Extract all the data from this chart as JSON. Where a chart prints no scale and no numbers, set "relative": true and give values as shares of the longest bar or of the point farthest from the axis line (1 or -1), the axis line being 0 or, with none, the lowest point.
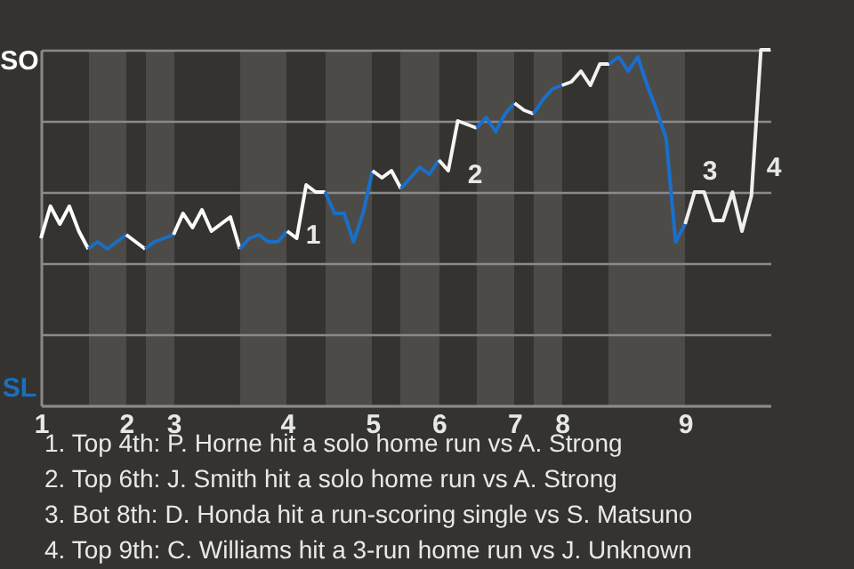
{
  "chart_data": {
    "type": "line",
    "relative": true,
    "grid": "y",
    "categories": [
      "1",
      null,
      null,
      null,
      null,
      null,
      null,
      null,
      null,
      "2",
      null,
      null,
      null,
      null,
      "3",
      null,
      null,
      null,
      null,
      null,
      null,
      null,
      null,
      null,
      null,
      null,
      "4",
      null,
      null,
      null,
      null,
      null,
      null,
      null,
      null,
      "5",
      null,
      null,
      null,
      null,
      null,
      null,
      "6",
      null,
      null,
      null,
      null,
      null,
      null,
      null,
      "7",
      null,
      null,
      null,
      null,
      "8",
      null,
      null,
      null,
      null,
      null,
      null,
      null,
      null,
      null,
      null,
      null,
      null,
      "9",
      null,
      null,
      null,
      null,
      null,
      null,
      null,
      null,
      null
    ],
    "series": [
      {
        "color": "#ffffff",
        "values": [
          0.47,
          0.56,
          0.51,
          0.56,
          0.49,
          0.44,
          null,
          null,
          null,
          null,
          null,
          null,
          null,
          null,
          null,
          null,
          null,
          null,
          null,
          null,
          null,
          null,
          null,
          null,
          null,
          null,
          null,
          null,
          null,
          null,
          null,
          null,
          null,
          null,
          null,
          null,
          null,
          null,
          null,
          null,
          null,
          null,
          null,
          null,
          null,
          null,
          null,
          null,
          null,
          null,
          null,
          null,
          null,
          null,
          null,
          null,
          null,
          null,
          null,
          null,
          null,
          null,
          null,
          null,
          null,
          null,
          null,
          null,
          null,
          null,
          null,
          null,
          null,
          null,
          null,
          null,
          null,
          null
        ]
      },
      {
        "color": "#1a6fc0",
        "values": [
          null,
          null,
          null,
          null,
          null,
          0.44,
          0.46,
          0.44,
          0.46,
          0.48,
          null,
          null,
          null,
          null,
          null,
          null,
          null,
          null,
          null,
          null,
          null,
          null,
          null,
          null,
          null,
          null,
          null,
          null,
          null,
          null,
          null,
          null,
          null,
          null,
          null,
          null,
          null,
          null,
          null,
          null,
          null,
          null,
          null,
          null,
          null,
          null,
          null,
          null,
          null,
          null,
          null,
          null,
          null,
          null,
          null,
          null,
          null,
          null,
          null,
          null,
          null,
          null,
          null,
          null,
          null,
          null,
          null,
          null,
          null,
          null,
          null,
          null,
          null,
          null,
          null,
          null,
          null,
          null
        ]
      },
      {
        "color": "#fdfdfd",
        "values": [
          null,
          null,
          null,
          null,
          null,
          null,
          null,
          null,
          null,
          0.48,
          0.46,
          0.44,
          null,
          null,
          null,
          null,
          null,
          null,
          null,
          null,
          null,
          null,
          null,
          null,
          null,
          null,
          null,
          null,
          null,
          null,
          null,
          null,
          null,
          null,
          null,
          null,
          null,
          null,
          null,
          null,
          null,
          null,
          null,
          null,
          null,
          null,
          null,
          null,
          null,
          null,
          null,
          null,
          null,
          null,
          null,
          null,
          null,
          null,
          null,
          null,
          null,
          null,
          null,
          null,
          null,
          null,
          null,
          null,
          null,
          null,
          null,
          null,
          null,
          null,
          null,
          null,
          null,
          null
        ]
      },
      {
        "color": "#1a6fc2",
        "values": [
          null,
          null,
          null,
          null,
          null,
          null,
          null,
          null,
          null,
          null,
          null,
          0.44,
          0.46,
          0.47,
          0.48,
          null,
          null,
          null,
          null,
          null,
          null,
          null,
          null,
          null,
          null,
          null,
          null,
          null,
          null,
          null,
          null,
          null,
          null,
          null,
          null,
          null,
          null,
          null,
          null,
          null,
          null,
          null,
          null,
          null,
          null,
          null,
          null,
          null,
          null,
          null,
          null,
          null,
          null,
          null,
          null,
          null,
          null,
          null,
          null,
          null,
          null,
          null,
          null,
          null,
          null,
          null,
          null,
          null,
          null,
          null,
          null,
          null,
          null,
          null,
          null,
          null,
          null,
          null
        ]
      },
      {
        "color": "#fbfbfb",
        "values": [
          null,
          null,
          null,
          null,
          null,
          null,
          null,
          null,
          null,
          null,
          null,
          null,
          null,
          null,
          0.48,
          0.54,
          0.5,
          0.55,
          0.49,
          0.51,
          0.53,
          0.44,
          null,
          null,
          null,
          null,
          null,
          null,
          null,
          null,
          null,
          null,
          null,
          null,
          null,
          null,
          null,
          null,
          null,
          null,
          null,
          null,
          null,
          null,
          null,
          null,
          null,
          null,
          null,
          null,
          null,
          null,
          null,
          null,
          null,
          null,
          null,
          null,
          null,
          null,
          null,
          null,
          null,
          null,
          null,
          null,
          null,
          null,
          null,
          null,
          null,
          null,
          null,
          null,
          null,
          null,
          null,
          null
        ]
      },
      {
        "color": "#1a6fc4",
        "values": [
          null,
          null,
          null,
          null,
          null,
          null,
          null,
          null,
          null,
          null,
          null,
          null,
          null,
          null,
          null,
          null,
          null,
          null,
          null,
          null,
          null,
          0.44,
          0.47,
          0.48,
          0.46,
          0.46,
          0.49,
          null,
          null,
          null,
          null,
          null,
          null,
          null,
          null,
          null,
          null,
          null,
          null,
          null,
          null,
          null,
          null,
          null,
          null,
          null,
          null,
          null,
          null,
          null,
          null,
          null,
          null,
          null,
          null,
          null,
          null,
          null,
          null,
          null,
          null,
          null,
          null,
          null,
          null,
          null,
          null,
          null,
          null,
          null,
          null,
          null,
          null,
          null,
          null,
          null,
          null,
          null
        ]
      },
      {
        "color": "#f9f9f9",
        "values": [
          null,
          null,
          null,
          null,
          null,
          null,
          null,
          null,
          null,
          null,
          null,
          null,
          null,
          null,
          null,
          null,
          null,
          null,
          null,
          null,
          null,
          null,
          null,
          null,
          null,
          null,
          0.49,
          0.47,
          0.62,
          0.6,
          0.6,
          null,
          null,
          null,
          null,
          null,
          null,
          null,
          null,
          null,
          null,
          null,
          null,
          null,
          null,
          null,
          null,
          null,
          null,
          null,
          null,
          null,
          null,
          null,
          null,
          null,
          null,
          null,
          null,
          null,
          null,
          null,
          null,
          null,
          null,
          null,
          null,
          null,
          null,
          null,
          null,
          null,
          null,
          null,
          null,
          null,
          null,
          null
        ]
      },
      {
        "color": "#1a6fc6",
        "values": [
          null,
          null,
          null,
          null,
          null,
          null,
          null,
          null,
          null,
          null,
          null,
          null,
          null,
          null,
          null,
          null,
          null,
          null,
          null,
          null,
          null,
          null,
          null,
          null,
          null,
          null,
          null,
          null,
          null,
          null,
          0.6,
          0.54,
          0.54,
          0.46,
          0.54,
          0.66,
          null,
          null,
          null,
          null,
          null,
          null,
          null,
          null,
          null,
          null,
          null,
          null,
          null,
          null,
          null,
          null,
          null,
          null,
          null,
          null,
          null,
          null,
          null,
          null,
          null,
          null,
          null,
          null,
          null,
          null,
          null,
          null,
          null,
          null,
          null,
          null,
          null,
          null,
          null,
          null,
          null,
          null
        ]
      },
      {
        "color": "#f7f7f7",
        "values": [
          null,
          null,
          null,
          null,
          null,
          null,
          null,
          null,
          null,
          null,
          null,
          null,
          null,
          null,
          null,
          null,
          null,
          null,
          null,
          null,
          null,
          null,
          null,
          null,
          null,
          null,
          null,
          null,
          null,
          null,
          null,
          null,
          null,
          null,
          null,
          0.66,
          0.64,
          0.66,
          0.61,
          null,
          null,
          null,
          null,
          null,
          null,
          null,
          null,
          null,
          null,
          null,
          null,
          null,
          null,
          null,
          null,
          null,
          null,
          null,
          null,
          null,
          null,
          null,
          null,
          null,
          null,
          null,
          null,
          null,
          null,
          null,
          null,
          null,
          null,
          null,
          null,
          null,
          null,
          null
        ]
      },
      {
        "color": "#1a6fc8",
        "values": [
          null,
          null,
          null,
          null,
          null,
          null,
          null,
          null,
          null,
          null,
          null,
          null,
          null,
          null,
          null,
          null,
          null,
          null,
          null,
          null,
          null,
          null,
          null,
          null,
          null,
          null,
          null,
          null,
          null,
          null,
          null,
          null,
          null,
          null,
          null,
          null,
          null,
          null,
          0.61,
          0.64,
          0.67,
          0.65,
          0.69,
          null,
          null,
          null,
          null,
          null,
          null,
          null,
          null,
          null,
          null,
          null,
          null,
          null,
          null,
          null,
          null,
          null,
          null,
          null,
          null,
          null,
          null,
          null,
          null,
          null,
          null,
          null,
          null,
          null,
          null,
          null,
          null,
          null,
          null,
          null
        ]
      },
      {
        "color": "#f5f5f5",
        "values": [
          null,
          null,
          null,
          null,
          null,
          null,
          null,
          null,
          null,
          null,
          null,
          null,
          null,
          null,
          null,
          null,
          null,
          null,
          null,
          null,
          null,
          null,
          null,
          null,
          null,
          null,
          null,
          null,
          null,
          null,
          null,
          null,
          null,
          null,
          null,
          null,
          null,
          null,
          null,
          null,
          null,
          null,
          0.69,
          0.66,
          0.8,
          0.79,
          0.78,
          null,
          null,
          null,
          null,
          null,
          null,
          null,
          null,
          null,
          null,
          null,
          null,
          null,
          null,
          null,
          null,
          null,
          null,
          null,
          null,
          null,
          null,
          null,
          null,
          null,
          null,
          null,
          null,
          null,
          null,
          null
        ]
      },
      {
        "color": "#1a6fca",
        "values": [
          null,
          null,
          null,
          null,
          null,
          null,
          null,
          null,
          null,
          null,
          null,
          null,
          null,
          null,
          null,
          null,
          null,
          null,
          null,
          null,
          null,
          null,
          null,
          null,
          null,
          null,
          null,
          null,
          null,
          null,
          null,
          null,
          null,
          null,
          null,
          null,
          null,
          null,
          null,
          null,
          null,
          null,
          null,
          null,
          null,
          null,
          0.78,
          0.81,
          0.77,
          0.82,
          0.85,
          null,
          null,
          null,
          null,
          null,
          null,
          null,
          null,
          null,
          null,
          null,
          null,
          null,
          null,
          null,
          null,
          null,
          null,
          null,
          null,
          null,
          null,
          null,
          null,
          null,
          null,
          null
        ]
      },
      {
        "color": "#f3f3f3",
        "values": [
          null,
          null,
          null,
          null,
          null,
          null,
          null,
          null,
          null,
          null,
          null,
          null,
          null,
          null,
          null,
          null,
          null,
          null,
          null,
          null,
          null,
          null,
          null,
          null,
          null,
          null,
          null,
          null,
          null,
          null,
          null,
          null,
          null,
          null,
          null,
          null,
          null,
          null,
          null,
          null,
          null,
          null,
          null,
          null,
          null,
          null,
          null,
          null,
          null,
          null,
          0.85,
          0.83,
          0.82,
          null,
          null,
          null,
          null,
          null,
          null,
          null,
          null,
          null,
          null,
          null,
          null,
          null,
          null,
          null,
          null,
          null,
          null,
          null,
          null,
          null,
          null,
          null,
          null,
          null
        ]
      },
      {
        "color": "#1a6fcc",
        "values": [
          null,
          null,
          null,
          null,
          null,
          null,
          null,
          null,
          null,
          null,
          null,
          null,
          null,
          null,
          null,
          null,
          null,
          null,
          null,
          null,
          null,
          null,
          null,
          null,
          null,
          null,
          null,
          null,
          null,
          null,
          null,
          null,
          null,
          null,
          null,
          null,
          null,
          null,
          null,
          null,
          null,
          null,
          null,
          null,
          null,
          null,
          null,
          null,
          null,
          null,
          null,
          null,
          0.82,
          0.86,
          0.89,
          0.9,
          null,
          null,
          null,
          null,
          null,
          null,
          null,
          null,
          null,
          null,
          null,
          null,
          null,
          null,
          null,
          null,
          null,
          null,
          null,
          null,
          null,
          null
        ]
      },
      {
        "color": "#f1f1f1",
        "values": [
          null,
          null,
          null,
          null,
          null,
          null,
          null,
          null,
          null,
          null,
          null,
          null,
          null,
          null,
          null,
          null,
          null,
          null,
          null,
          null,
          null,
          null,
          null,
          null,
          null,
          null,
          null,
          null,
          null,
          null,
          null,
          null,
          null,
          null,
          null,
          null,
          null,
          null,
          null,
          null,
          null,
          null,
          null,
          null,
          null,
          null,
          null,
          null,
          null,
          null,
          null,
          null,
          null,
          null,
          null,
          0.9,
          0.91,
          0.94,
          0.9,
          0.96,
          0.96,
          null,
          null,
          null,
          null,
          null,
          null,
          null,
          null,
          null,
          null,
          null,
          null,
          null,
          null,
          null,
          null,
          null
        ]
      },
      {
        "color": "#1a6fce",
        "values": [
          null,
          null,
          null,
          null,
          null,
          null,
          null,
          null,
          null,
          null,
          null,
          null,
          null,
          null,
          null,
          null,
          null,
          null,
          null,
          null,
          null,
          null,
          null,
          null,
          null,
          null,
          null,
          null,
          null,
          null,
          null,
          null,
          null,
          null,
          null,
          null,
          null,
          null,
          null,
          null,
          null,
          null,
          null,
          null,
          null,
          null,
          null,
          null,
          null,
          null,
          null,
          null,
          null,
          null,
          null,
          null,
          null,
          null,
          null,
          null,
          0.96,
          0.98,
          0.94,
          0.98,
          0.9,
          0.83,
          0.75,
          0.46,
          0.51,
          null,
          null,
          null,
          null,
          null,
          null,
          null,
          null,
          null
        ]
      },
      {
        "color": "#efefef",
        "values": [
          null,
          null,
          null,
          null,
          null,
          null,
          null,
          null,
          null,
          null,
          null,
          null,
          null,
          null,
          null,
          null,
          null,
          null,
          null,
          null,
          null,
          null,
          null,
          null,
          null,
          null,
          null,
          null,
          null,
          null,
          null,
          null,
          null,
          null,
          null,
          null,
          null,
          null,
          null,
          null,
          null,
          null,
          null,
          null,
          null,
          null,
          null,
          null,
          null,
          null,
          null,
          null,
          null,
          null,
          null,
          null,
          null,
          null,
          null,
          null,
          null,
          null,
          null,
          null,
          null,
          null,
          null,
          null,
          0.51,
          0.6,
          0.6,
          0.52,
          0.52,
          0.6,
          0.49,
          0.59,
          1,
          1
        ]
      }
    ],
    "annotations": [
      "SO",
      "SL",
      "1",
      "2",
      "3",
      "4",
      "1. Top 4th: P. Horne hit a solo home run vs A. Strong",
      "2. Top 6th: J. Smith hit a solo home run vs A. Strong",
      "3. Bot 8th: D. Honda hit a run-scoring single vs S. Matsuno",
      "4. Top 9th: C. Williams hit a 3-run home run vs J. Unknown"
    ]
  }
}
